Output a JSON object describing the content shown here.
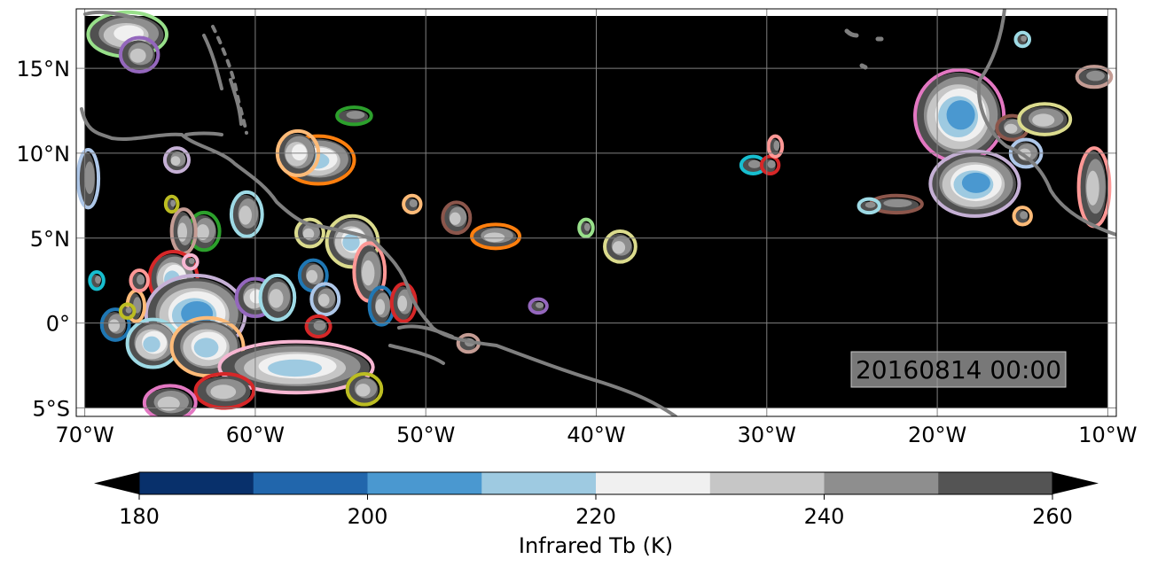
{
  "map": {
    "projection": "PlateCarree",
    "lon_range": [
      -70.5,
      -9.5
    ],
    "lat_range": [
      -5.5,
      18.5
    ],
    "lon_ticks": [
      {
        "value": -70,
        "label": "70°W"
      },
      {
        "value": -60,
        "label": "60°W"
      },
      {
        "value": -50,
        "label": "50°W"
      },
      {
        "value": -40,
        "label": "40°W"
      },
      {
        "value": -30,
        "label": "30°W"
      },
      {
        "value": -20,
        "label": "20°W"
      },
      {
        "value": -10,
        "label": "10°W"
      }
    ],
    "lat_ticks": [
      {
        "value": 15,
        "label": "15°N"
      },
      {
        "value": 10,
        "label": "10°N"
      },
      {
        "value": 5,
        "label": "5°N"
      },
      {
        "value": 0,
        "label": "0°"
      },
      {
        "value": -5,
        "label": "5°S"
      }
    ],
    "grid": true,
    "background_color": "#000000",
    "coastline_color": "#7f7f7f",
    "grid_color": "#808080",
    "timestamp": "20160814 00:00"
  },
  "features": [
    {
      "lon": -67.5,
      "lat": 17.0,
      "rx": 2.2,
      "ry": 1.2,
      "outline": "#98df8a"
    },
    {
      "lon": -66.8,
      "lat": 15.8,
      "rx": 1.0,
      "ry": 0.9,
      "outline": "#9467bd"
    },
    {
      "lon": -64.6,
      "lat": 9.6,
      "rx": 0.6,
      "ry": 0.6,
      "outline": "#c5b0d5"
    },
    {
      "lon": -69.8,
      "lat": 8.5,
      "rx": 0.5,
      "ry": 1.6,
      "outline": "#aec7e8"
    },
    {
      "lon": -63.0,
      "lat": 5.4,
      "rx": 0.8,
      "ry": 1.0,
      "outline": "#2ca02c"
    },
    {
      "lon": -60.5,
      "lat": 6.4,
      "rx": 0.8,
      "ry": 1.2,
      "outline": "#9edae5"
    },
    {
      "lon": -64.2,
      "lat": 5.4,
      "rx": 0.6,
      "ry": 1.2,
      "outline": "#c49c94"
    },
    {
      "lon": -56.3,
      "lat": 9.6,
      "rx": 2.0,
      "ry": 1.3,
      "outline": "#ff7f0e"
    },
    {
      "lon": -57.5,
      "lat": 10.0,
      "rx": 1.1,
      "ry": 1.2,
      "outline": "#ffbb78"
    },
    {
      "lon": -54.2,
      "lat": 12.2,
      "rx": 0.9,
      "ry": 0.4,
      "outline": "#2ca02c"
    },
    {
      "lon": -64.8,
      "lat": 2.6,
      "rx": 1.3,
      "ry": 1.5,
      "outline": "#d62728"
    },
    {
      "lon": -63.5,
      "lat": 0.5,
      "rx": 2.8,
      "ry": 2.2,
      "outline": "#c5b0d5"
    },
    {
      "lon": -60.0,
      "lat": 1.5,
      "rx": 1.0,
      "ry": 1.0,
      "outline": "#9467bd"
    },
    {
      "lon": -58.7,
      "lat": 1.5,
      "rx": 0.9,
      "ry": 1.2,
      "outline": "#9edae5"
    },
    {
      "lon": -56.8,
      "lat": 5.3,
      "rx": 0.7,
      "ry": 0.7,
      "outline": "#dbdb8d"
    },
    {
      "lon": -56.6,
      "lat": 2.8,
      "rx": 0.7,
      "ry": 0.8,
      "outline": "#1f77b4"
    },
    {
      "lon": -55.9,
      "lat": 1.4,
      "rx": 0.7,
      "ry": 0.8,
      "outline": "#aec7e8"
    },
    {
      "lon": -54.3,
      "lat": 4.8,
      "rx": 1.4,
      "ry": 1.4,
      "outline": "#dbdb8d"
    },
    {
      "lon": -53.3,
      "lat": 3.0,
      "rx": 0.8,
      "ry": 1.6,
      "outline": "#ff9896"
    },
    {
      "lon": -52.6,
      "lat": 1.0,
      "rx": 0.6,
      "ry": 1.0,
      "outline": "#1f77b4"
    },
    {
      "lon": -51.3,
      "lat": 1.2,
      "rx": 0.6,
      "ry": 1.0,
      "outline": "#d62728"
    },
    {
      "lon": -56.3,
      "lat": -0.2,
      "rx": 0.6,
      "ry": 0.5,
      "outline": "#d62728"
    },
    {
      "lon": -68.2,
      "lat": -0.1,
      "rx": 0.7,
      "ry": 0.8,
      "outline": "#1f77b4"
    },
    {
      "lon": -66.0,
      "lat": -1.2,
      "rx": 1.4,
      "ry": 1.3,
      "outline": "#9edae5"
    },
    {
      "lon": -62.8,
      "lat": -1.4,
      "rx": 2.0,
      "ry": 1.6,
      "outline": "#ffbb78"
    },
    {
      "lon": -57.6,
      "lat": -2.6,
      "rx": 4.4,
      "ry": 1.4,
      "outline": "#f7b6d2"
    },
    {
      "lon": -61.8,
      "lat": -4.0,
      "rx": 1.6,
      "ry": 0.9,
      "outline": "#d62728"
    },
    {
      "lon": -65.0,
      "lat": -4.7,
      "rx": 1.4,
      "ry": 0.9,
      "outline": "#e377c2"
    },
    {
      "lon": -53.6,
      "lat": -3.9,
      "rx": 0.9,
      "ry": 0.8,
      "outline": "#bcbd22"
    },
    {
      "lon": -50.8,
      "lat": 7.0,
      "rx": 0.4,
      "ry": 0.4,
      "outline": "#ffbb78"
    },
    {
      "lon": -48.2,
      "lat": 6.2,
      "rx": 0.7,
      "ry": 0.8,
      "outline": "#8c564b"
    },
    {
      "lon": -45.9,
      "lat": 5.1,
      "rx": 1.3,
      "ry": 0.6,
      "outline": "#ff7f0e"
    },
    {
      "lon": -40.6,
      "lat": 5.6,
      "rx": 0.3,
      "ry": 0.4,
      "outline": "#98df8a"
    },
    {
      "lon": -38.6,
      "lat": 4.5,
      "rx": 0.8,
      "ry": 0.8,
      "outline": "#dbdb8d"
    },
    {
      "lon": -43.4,
      "lat": 1.0,
      "rx": 0.4,
      "ry": 0.3,
      "outline": "#9467bd"
    },
    {
      "lon": -30.8,
      "lat": 9.3,
      "rx": 0.6,
      "ry": 0.4,
      "outline": "#17becf"
    },
    {
      "lon": -29.8,
      "lat": 9.3,
      "rx": 0.4,
      "ry": 0.4,
      "outline": "#d62728"
    },
    {
      "lon": -29.5,
      "lat": 10.4,
      "rx": 0.3,
      "ry": 0.5,
      "outline": "#ff9896"
    },
    {
      "lon": -18.7,
      "lat": 12.2,
      "rx": 2.5,
      "ry": 2.6,
      "outline": "#e377c2"
    },
    {
      "lon": -17.8,
      "lat": 8.2,
      "rx": 2.5,
      "ry": 1.8,
      "outline": "#c5b0d5"
    },
    {
      "lon": -15.6,
      "lat": 11.5,
      "rx": 0.8,
      "ry": 0.6,
      "outline": "#8c564b"
    },
    {
      "lon": -13.7,
      "lat": 12.0,
      "rx": 1.4,
      "ry": 0.8,
      "outline": "#dbdb8d"
    },
    {
      "lon": -14.8,
      "lat": 10.0,
      "rx": 0.8,
      "ry": 0.7,
      "outline": "#aec7e8"
    },
    {
      "lon": -10.8,
      "lat": 8.0,
      "rx": 0.8,
      "ry": 2.2,
      "outline": "#ff9896"
    },
    {
      "lon": -10.8,
      "lat": 14.5,
      "rx": 0.9,
      "ry": 0.5,
      "outline": "#c49c94"
    },
    {
      "lon": -22.4,
      "lat": 7.0,
      "rx": 1.4,
      "ry": 0.4,
      "outline": "#8c564b"
    },
    {
      "lon": -24.0,
      "lat": 6.9,
      "rx": 0.5,
      "ry": 0.3,
      "outline": "#9edae5"
    },
    {
      "lon": -15.0,
      "lat": 6.3,
      "rx": 0.4,
      "ry": 0.4,
      "outline": "#ffbb78"
    },
    {
      "lon": -15.0,
      "lat": 16.7,
      "rx": 0.3,
      "ry": 0.3,
      "outline": "#9edae5"
    },
    {
      "lon": -69.3,
      "lat": 2.5,
      "rx": 0.3,
      "ry": 0.4,
      "outline": "#17becf"
    },
    {
      "lon": -67.0,
      "lat": 1.0,
      "rx": 0.4,
      "ry": 0.8,
      "outline": "#ffbb78"
    },
    {
      "lon": -67.5,
      "lat": 0.7,
      "rx": 0.3,
      "ry": 0.3,
      "outline": "#bcbd22"
    },
    {
      "lon": -63.8,
      "lat": 3.6,
      "rx": 0.3,
      "ry": 0.3,
      "outline": "#f7b6d2"
    },
    {
      "lon": -64.9,
      "lat": 7.0,
      "rx": 0.25,
      "ry": 0.35,
      "outline": "#bcbd22"
    },
    {
      "lon": -47.5,
      "lat": -1.2,
      "rx": 0.5,
      "ry": 0.4,
      "outline": "#c49c94"
    },
    {
      "lon": -66.8,
      "lat": 2.5,
      "rx": 0.4,
      "ry": 0.5,
      "outline": "#ff9896"
    }
  ],
  "colorbar": {
    "label": "Infrared Tb (K)",
    "range": [
      180,
      260
    ],
    "extend": "both",
    "levels": [
      180,
      190,
      200,
      210,
      220,
      230,
      240,
      250,
      260
    ],
    "colors": [
      "#08306b",
      "#2166ac",
      "#4a98d0",
      "#9ecae1",
      "#f0f0f0",
      "#c6c6c6",
      "#8e8e8e",
      "#545454"
    ],
    "under_color": "#000000",
    "over_color": "#000000",
    "ticks": [
      {
        "value": 180,
        "label": "180"
      },
      {
        "value": 200,
        "label": "200"
      },
      {
        "value": 220,
        "label": "220"
      },
      {
        "value": 240,
        "label": "240"
      },
      {
        "value": 260,
        "label": "260"
      }
    ]
  }
}
